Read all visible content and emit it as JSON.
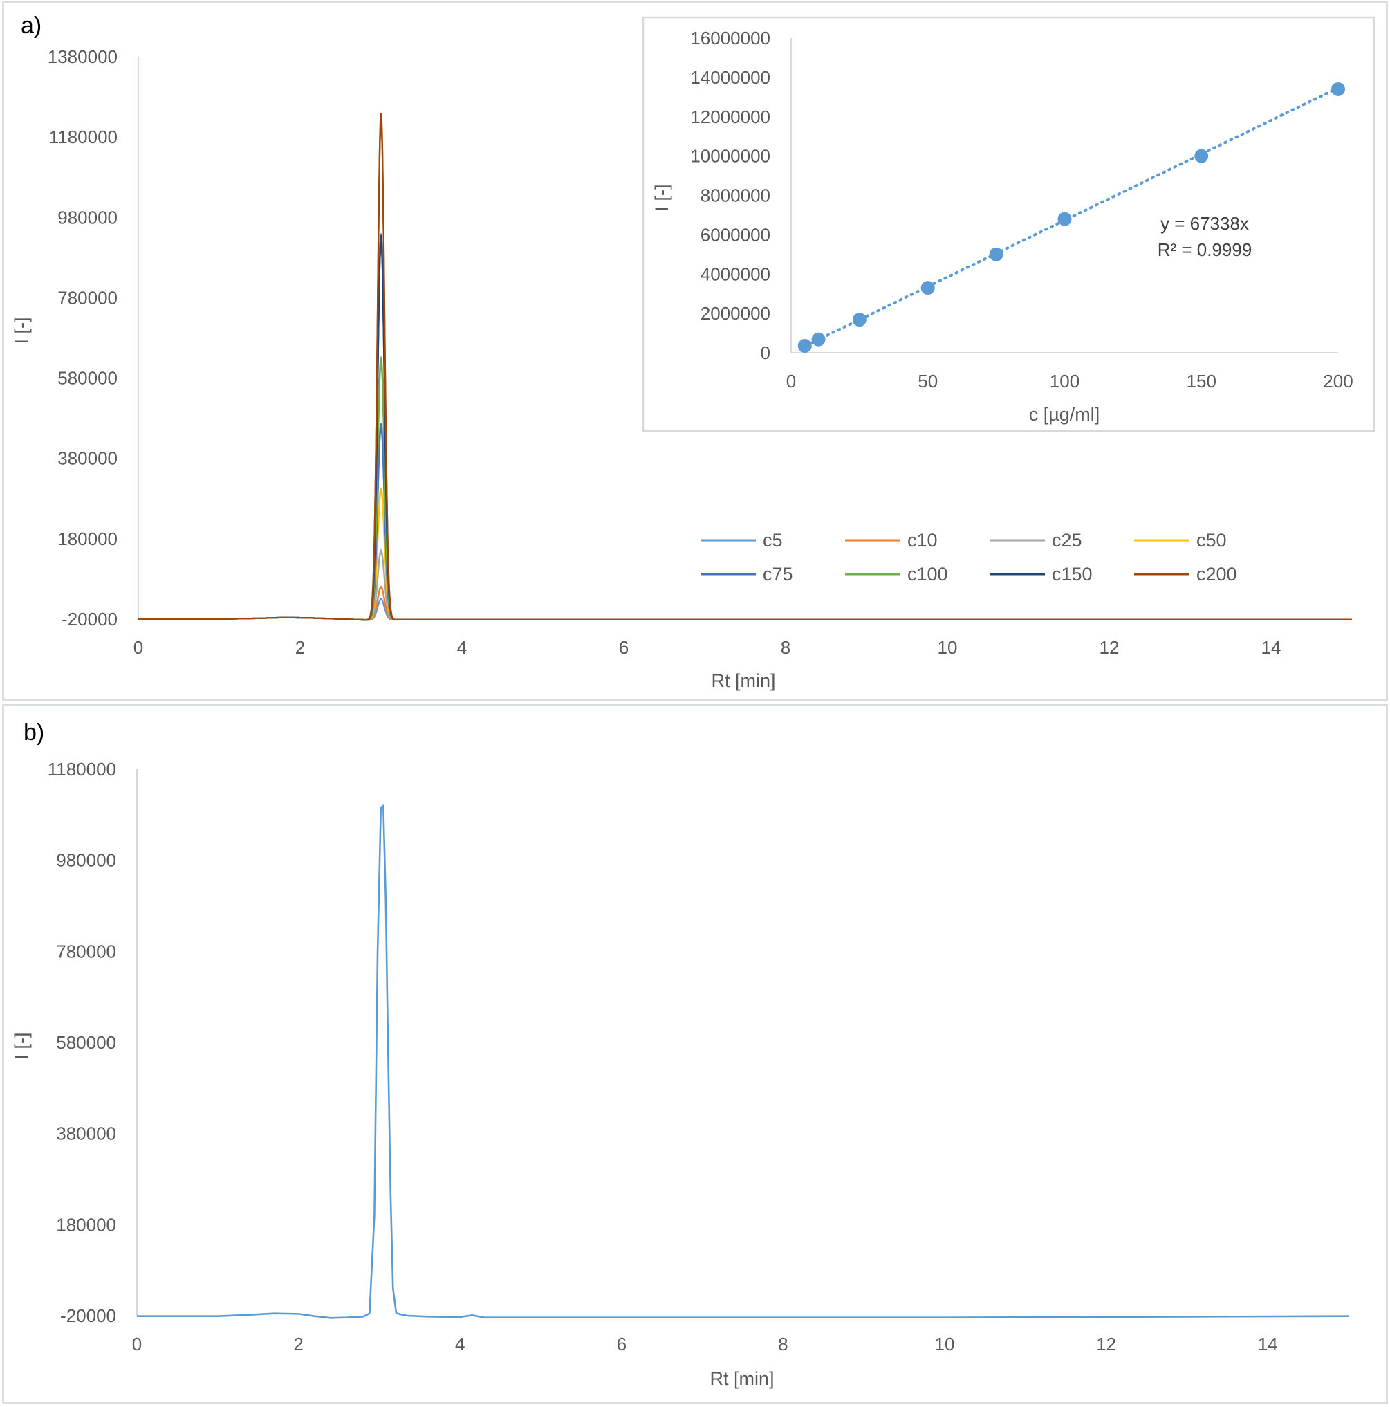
{
  "panels": {
    "a_label": "a)",
    "b_label": "b)"
  },
  "chart_data": [
    {
      "id": "chromatograms_a",
      "type": "line",
      "xlabel": "Rt [min]",
      "ylabel": "I [-]",
      "xlim": [
        0,
        15
      ],
      "ylim": [
        -20000,
        1380000
      ],
      "xticks": [
        0,
        2,
        4,
        6,
        8,
        10,
        12,
        14
      ],
      "yticks": [
        -20000,
        180000,
        380000,
        580000,
        780000,
        980000,
        1180000,
        1380000
      ],
      "grid": false,
      "legend_position": "center-right",
      "baseline": [
        [
          0,
          -20000
        ],
        [
          1.0,
          -20000
        ],
        [
          1.5,
          -18000
        ],
        [
          1.8,
          -16000
        ],
        [
          2.1,
          -17000
        ],
        [
          2.4,
          -19000
        ],
        [
          2.8,
          -22000
        ],
        [
          3.5,
          -21000
        ],
        [
          15,
          -21000
        ]
      ],
      "peak": {
        "rt": 3.0,
        "width": 0.1
      },
      "series": [
        {
          "name": "c5",
          "color": "#5b9bd5",
          "peak_height": 30000
        },
        {
          "name": "c10",
          "color": "#ed7d31",
          "peak_height": 60000
        },
        {
          "name": "c25",
          "color": "#a5a5a5",
          "peak_height": 150000
        },
        {
          "name": "c50",
          "color": "#ffc000",
          "peak_height": 305000
        },
        {
          "name": "c75",
          "color": "#4472c4",
          "peak_height": 465000
        },
        {
          "name": "c100",
          "color": "#70ad47",
          "peak_height": 630000
        },
        {
          "name": "c150",
          "color": "#264478",
          "peak_height": 935000
        },
        {
          "name": "c200",
          "color": "#9e480e",
          "peak_height": 1240000
        }
      ]
    },
    {
      "id": "calibration_inset",
      "type": "scatter",
      "xlabel": "c [µg/ml]",
      "ylabel": "I [-]",
      "xlim": [
        0,
        200
      ],
      "ylim": [
        0,
        16000000
      ],
      "xticks": [
        0,
        50,
        100,
        150,
        200
      ],
      "yticks": [
        0,
        2000000,
        4000000,
        6000000,
        8000000,
        10000000,
        12000000,
        14000000,
        16000000
      ],
      "grid": false,
      "color": "#5b9bd5",
      "points": {
        "x": [
          5,
          10,
          25,
          50,
          75,
          100,
          150,
          200
        ],
        "y": [
          350000,
          680000,
          1680000,
          3300000,
          5000000,
          6800000,
          10000000,
          13400000
        ]
      },
      "trendline": {
        "slope": 67338,
        "style": "dotted"
      },
      "equation": "y = 67338x",
      "r_squared": "R² = 0.9999"
    },
    {
      "id": "chromatogram_b",
      "type": "line",
      "xlabel": "Rt [min]",
      "ylabel": "I [-]",
      "xlim": [
        0,
        15
      ],
      "ylim": [
        -20000,
        1180000
      ],
      "xticks": [
        0,
        2,
        4,
        6,
        8,
        10,
        12,
        14
      ],
      "yticks": [
        -20000,
        180000,
        380000,
        580000,
        780000,
        980000,
        1180000
      ],
      "grid": false,
      "color": "#5b9bd5",
      "series": [
        {
          "x": [
            0,
            1.0,
            1.4,
            1.7,
            2.0,
            2.2,
            2.4,
            2.6,
            2.8,
            2.88,
            2.94,
            2.98,
            3.02,
            3.05,
            3.08,
            3.11,
            3.14,
            3.17,
            3.21,
            3.26,
            3.35,
            3.6,
            4.0,
            4.15,
            4.3,
            6,
            10,
            15
          ],
          "y": [
            -21000,
            -21000,
            -18000,
            -15000,
            -16000,
            -21000,
            -25000,
            -24000,
            -22000,
            -15000,
            200000,
            780000,
            1095000,
            1100000,
            900000,
            560000,
            250000,
            40000,
            -14000,
            -17000,
            -20000,
            -22000,
            -23000,
            -19000,
            -24000,
            -24000,
            -24000,
            -21000
          ]
        }
      ]
    }
  ]
}
